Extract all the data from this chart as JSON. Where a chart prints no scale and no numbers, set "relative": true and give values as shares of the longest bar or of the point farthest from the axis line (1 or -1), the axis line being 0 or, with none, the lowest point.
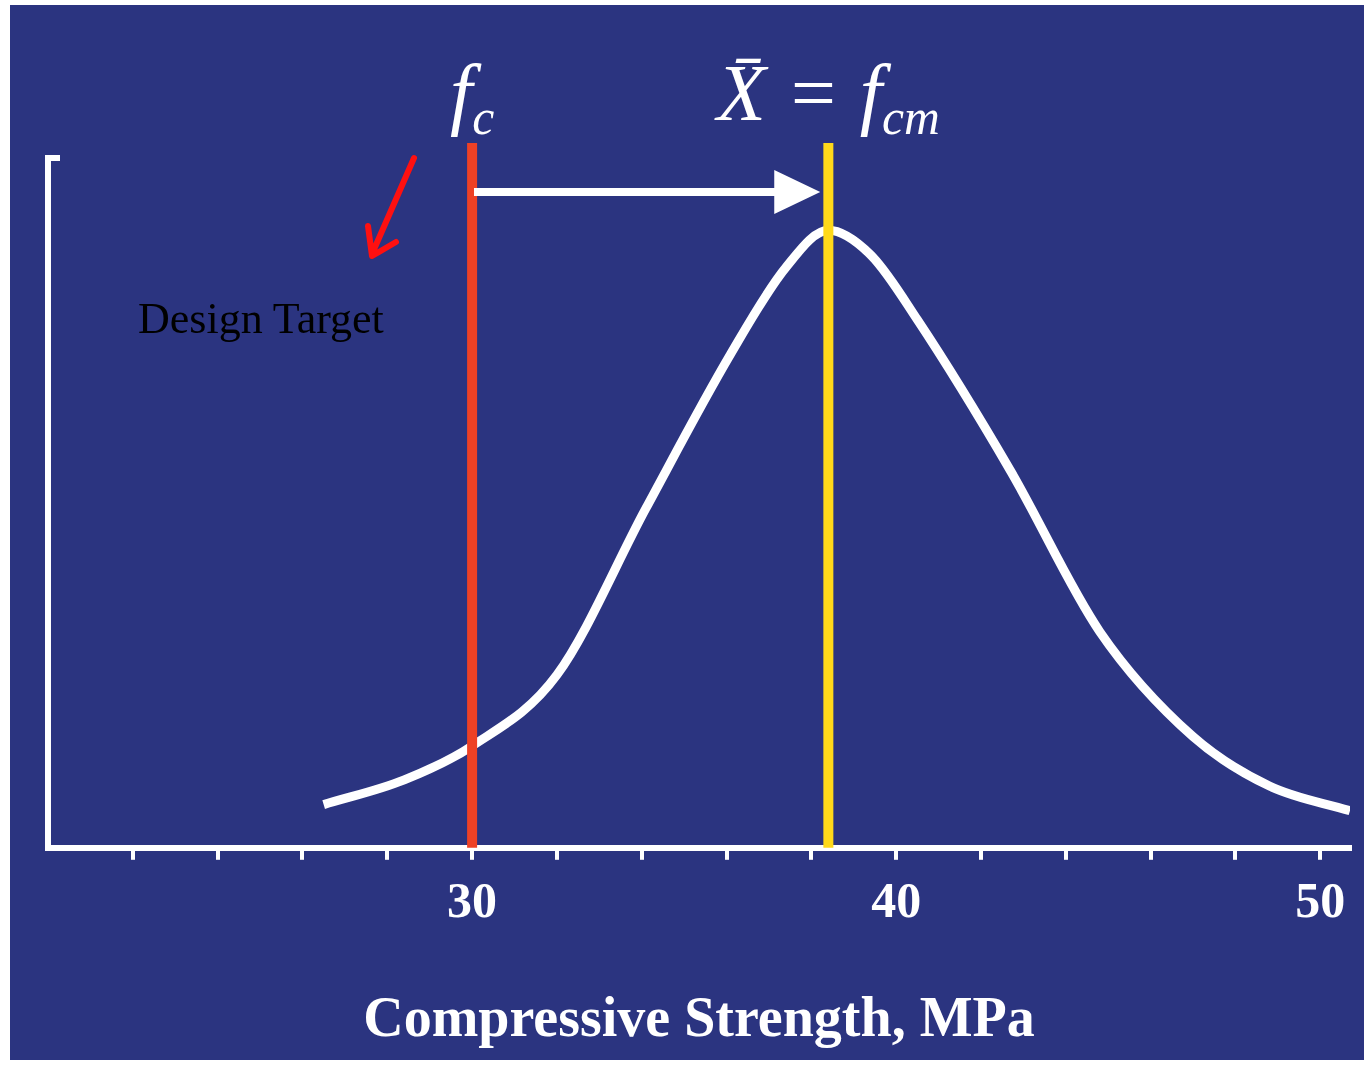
{
  "chart_data": {
    "type": "line",
    "relative": true,
    "xlabel": "Compressive Strength, MPa",
    "x": [
      26.5,
      28.4,
      30,
      32,
      34.1,
      36.1,
      37.4,
      38.4,
      39.4,
      40.5,
      42.7,
      44.8,
      47,
      48.8,
      50.7
    ],
    "series": [
      {
        "color": "#ffffff",
        "values": [
          0.07,
          0.11,
          0.165,
          0.28,
          0.55,
          0.8,
          0.94,
          1,
          0.96,
          0.855,
          0.61,
          0.35,
          0.18,
          0.1,
          0.06
        ]
      }
    ],
    "xlim": [
      20,
      50.7
    ],
    "xticks": [
      {
        "value": 22,
        "label": null
      },
      {
        "value": 24,
        "label": null
      },
      {
        "value": 26,
        "label": null
      },
      {
        "value": 28,
        "label": null
      },
      30,
      {
        "value": 32,
        "label": null
      },
      {
        "value": 34,
        "label": null
      },
      {
        "value": 36,
        "label": null
      },
      {
        "value": 38,
        "label": null
      },
      40,
      {
        "value": 42,
        "label": null
      },
      {
        "value": 44,
        "label": null
      },
      {
        "value": 46,
        "label": null
      },
      {
        "value": 48,
        "label": null
      },
      50
    ],
    "ref_lines": [
      {
        "axis": "x",
        "value": 30,
        "label": "f$_{c}$",
        "color": "#ee4125"
      },
      {
        "axis": "x",
        "value": 38.4,
        "label": "X̄ = f$_{cm}$",
        "color": "#ffd91a"
      }
    ],
    "annotations": [
      "Design Target"
    ],
    "grid": false,
    "legend": false,
    "marker": "none",
    "line_style": "solid"
  }
}
